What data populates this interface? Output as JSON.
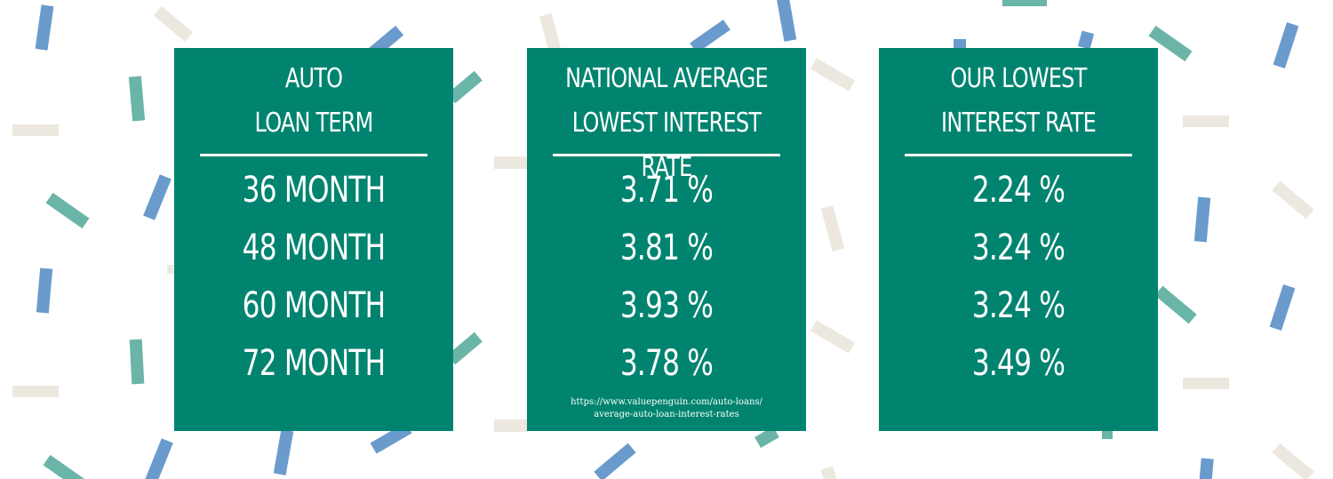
{
  "cards": [
    {
      "header": [
        "AUTO",
        "LOAN TERM"
      ],
      "rows": [
        "36 MONTH",
        "48 MONTH",
        "60 MONTH",
        "72 MONTH"
      ]
    },
    {
      "header": [
        "NATIONAL AVERAGE",
        "LOWEST INTEREST RATE"
      ],
      "rows": [
        "3.71 %",
        "3.81 %",
        "3.93 %",
        "3.78 %"
      ],
      "source": [
        "https://www.valuepenguin.com/auto-loans/",
        "average-auto-loan-interest-rates"
      ]
    },
    {
      "header": [
        "OUR LOWEST",
        "INTEREST RATE"
      ],
      "rows": [
        "2.24 %",
        "3.24 %",
        "3.24 %",
        "3.49 %"
      ]
    }
  ],
  "colors": {
    "card": "#00846f",
    "confetti_blue": "#6a9bcc",
    "confetti_teal": "#6bb5a8",
    "confetti_beige": "#ece8df"
  }
}
